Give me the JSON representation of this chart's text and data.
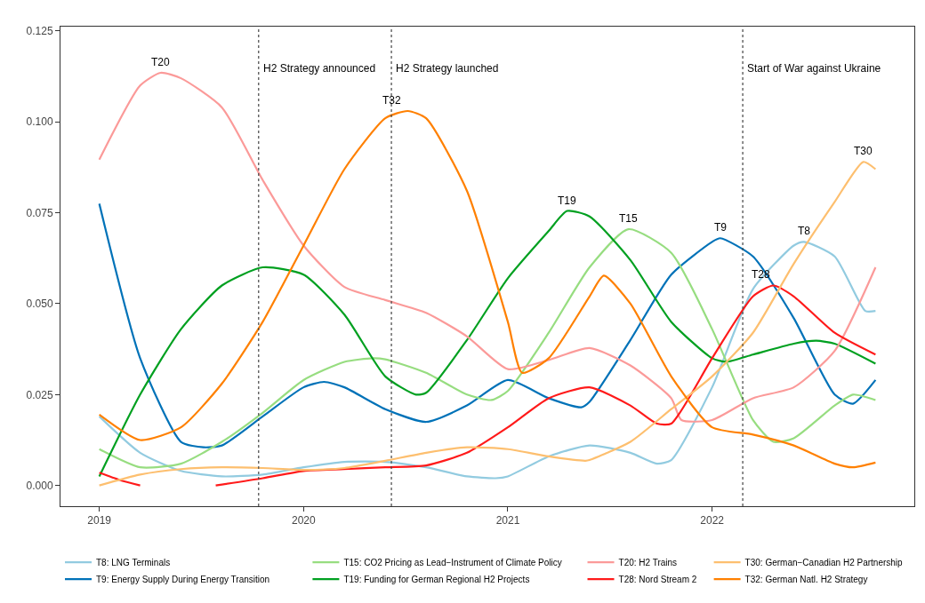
{
  "chart_data": {
    "type": "line",
    "xlim": [
      2018.81,
      2022.99
    ],
    "xticks": [
      2019,
      2020,
      2021,
      2022
    ],
    "ylim": [
      -0.0057,
      0.1262
    ],
    "yticks": [
      {
        "value": 0,
        "label": "0.000"
      },
      {
        "value": 0.025,
        "label": "0.025"
      },
      {
        "value": 0.05,
        "label": "0.050"
      },
      {
        "value": 0.075,
        "label": "0.075"
      },
      {
        "value": 0.1,
        "label": "0.100"
      },
      {
        "value": 0.125,
        "label": "0.125"
      }
    ],
    "legend": "bottom",
    "marker": "none",
    "line_style": "solid",
    "series": [
      {
        "name": "T8: LNG Terminals",
        "color": "#92cbe0",
        "x": [
          2019.0,
          2019.2,
          2019.4,
          2019.6,
          2019.8,
          2020.0,
          2020.2,
          2020.4,
          2020.6,
          2020.8,
          2020.94,
          2021.0,
          2021.2,
          2021.4,
          2021.6,
          2021.73,
          2021.8,
          2022.0,
          2022.2,
          2022.4,
          2022.45,
          2022.6,
          2022.75,
          2022.8
        ],
        "values": [
          0.019,
          0.009,
          0.004,
          0.0025,
          0.003,
          0.005,
          0.0065,
          0.0065,
          0.005,
          0.0025,
          0.002,
          0.0025,
          0.008,
          0.011,
          0.009,
          0.006,
          0.007,
          0.027,
          0.054,
          0.066,
          0.067,
          0.063,
          0.048,
          0.048
        ]
      },
      {
        "name": "T9: Energy Supply During Energy Transition",
        "color": "#0072b8",
        "x": [
          2019.0,
          2019.2,
          2019.4,
          2019.51,
          2019.6,
          2019.8,
          2020.0,
          2020.1,
          2020.2,
          2020.4,
          2020.6,
          2020.8,
          2021.0,
          2021.2,
          2021.36,
          2021.4,
          2021.6,
          2021.8,
          2022.0,
          2022.04,
          2022.2,
          2022.4,
          2022.6,
          2022.69,
          2022.8
        ],
        "values": [
          0.0775,
          0.035,
          0.012,
          0.0105,
          0.011,
          0.019,
          0.027,
          0.0285,
          0.027,
          0.021,
          0.0175,
          0.022,
          0.029,
          0.024,
          0.0215,
          0.023,
          0.04,
          0.058,
          0.067,
          0.068,
          0.063,
          0.046,
          0.025,
          0.0225,
          0.029
        ]
      },
      {
        "name": "T15: CO2 Pricing as Lead−Instrument of Climate Policy",
        "color": "#97dd80",
        "x": [
          2019.0,
          2019.2,
          2019.4,
          2019.6,
          2019.8,
          2020.0,
          2020.2,
          2020.34,
          2020.4,
          2020.6,
          2020.8,
          2020.92,
          2021.0,
          2021.2,
          2021.4,
          2021.59,
          2021.8,
          2022.0,
          2022.2,
          2022.3,
          2022.4,
          2022.6,
          2022.69,
          2022.8
        ],
        "values": [
          0.01,
          0.005,
          0.006,
          0.012,
          0.02,
          0.029,
          0.034,
          0.035,
          0.0347,
          0.031,
          0.025,
          0.0235,
          0.026,
          0.042,
          0.06,
          0.0705,
          0.064,
          0.043,
          0.018,
          0.012,
          0.013,
          0.022,
          0.025,
          0.0235
        ]
      },
      {
        "name": "T19: Funding for German Regional H2 Projects",
        "color": "#00a020",
        "x": [
          2019.0,
          2019.2,
          2019.4,
          2019.6,
          2019.8,
          2020.0,
          2020.2,
          2020.4,
          2020.55,
          2020.6,
          2020.8,
          2021.0,
          2021.2,
          2021.29,
          2021.4,
          2021.6,
          2021.8,
          2022.0,
          2022.07,
          2022.2,
          2022.4,
          2022.51,
          2022.6,
          2022.8
        ],
        "values": [
          0.0025,
          0.025,
          0.043,
          0.055,
          0.06,
          0.058,
          0.047,
          0.03,
          0.025,
          0.0255,
          0.04,
          0.057,
          0.07,
          0.0755,
          0.074,
          0.062,
          0.045,
          0.035,
          0.034,
          0.036,
          0.039,
          0.0398,
          0.039,
          0.0335
        ]
      },
      {
        "name": "T20: H2 Trains",
        "color": "#fb9a99",
        "x": [
          2019.0,
          2019.2,
          2019.3,
          2019.4,
          2019.6,
          2019.8,
          2020.0,
          2020.2,
          2020.4,
          2020.6,
          2020.8,
          2021.0,
          2021.2,
          2021.4,
          2021.6,
          2021.8,
          2021.85,
          2022.0,
          2022.2,
          2022.4,
          2022.6,
          2022.8
        ],
        "values": [
          0.0896,
          0.11,
          0.1135,
          0.112,
          0.104,
          0.084,
          0.066,
          0.0546,
          0.051,
          0.0475,
          0.041,
          0.032,
          0.0345,
          0.0378,
          0.033,
          0.024,
          0.018,
          0.018,
          0.024,
          0.027,
          0.037,
          0.06
        ]
      },
      {
        "name": "T28: Nord Stream 2",
        "color": "#ff1a1a",
        "x": [
          2019.0,
          2019.1,
          2019.2,
          2019.4,
          2019.57,
          2019.8,
          2020.0,
          2020.2,
          2020.4,
          2020.6,
          2020.8,
          2021.0,
          2021.2,
          2021.4,
          2021.6,
          2021.73,
          2021.8,
          2022.0,
          2022.2,
          2022.3,
          2022.4,
          2022.6,
          2022.8
        ],
        "values": [
          0.0035,
          0.0015,
          0.0,
          null,
          0.0,
          0.002,
          0.004,
          0.0045,
          0.005,
          0.0055,
          0.009,
          0.016,
          0.024,
          0.027,
          0.022,
          0.017,
          0.017,
          0.035,
          0.052,
          0.055,
          0.052,
          0.042,
          0.036
        ]
      },
      {
        "name": "T30: German−Canadian H2 Partnership",
        "color": "#fdbf6f",
        "x": [
          2019.0,
          2019.2,
          2019.4,
          2019.6,
          2019.8,
          2020.0,
          2020.2,
          2020.4,
          2020.6,
          2020.8,
          2021.0,
          2021.2,
          2021.38,
          2021.4,
          2021.6,
          2021.8,
          2022.0,
          2022.2,
          2022.4,
          2022.6,
          2022.74,
          2022.8
        ],
        "values": [
          0.0,
          0.003,
          0.0045,
          0.005,
          0.0048,
          0.0043,
          0.0048,
          0.0068,
          0.009,
          0.0105,
          0.01,
          0.008,
          0.0068,
          0.007,
          0.012,
          0.021,
          0.03,
          0.042,
          0.061,
          0.078,
          0.089,
          0.087
        ]
      },
      {
        "name": "T32: German Natl. H2 Strategy",
        "color": "#ff8000",
        "x": [
          2019.0,
          2019.2,
          2019.4,
          2019.6,
          2019.8,
          2020.0,
          2020.2,
          2020.4,
          2020.51,
          2020.6,
          2020.8,
          2021.0,
          2021.07,
          2021.2,
          2021.4,
          2021.47,
          2021.6,
          2021.8,
          2022.0,
          2022.2,
          2022.4,
          2022.6,
          2022.69,
          2022.8
        ],
        "values": [
          0.0195,
          0.0125,
          0.016,
          0.028,
          0.045,
          0.066,
          0.087,
          0.101,
          0.103,
          0.101,
          0.081,
          0.045,
          0.031,
          0.035,
          0.052,
          0.0577,
          0.05,
          0.03,
          0.016,
          0.014,
          0.011,
          0.006,
          0.005,
          0.0063
        ]
      }
    ],
    "ref_lines": [
      {
        "axis": "x",
        "value": 2019.78,
        "label": "H2 Strategy announced",
        "color": "#444444",
        "line_style": "dotted"
      },
      {
        "axis": "x",
        "value": 2020.43,
        "label": "H2 Strategy launched",
        "color": "#444444",
        "line_style": "dotted"
      },
      {
        "axis": "x",
        "value": 2022.15,
        "label": "Start of War against Ukraine",
        "color": "#444444",
        "line_style": "dotted"
      }
    ],
    "annotations": [
      {
        "text": "T20",
        "x": 2019.3,
        "y": 0.1135
      },
      {
        "text": "T32",
        "x": 2020.43,
        "y": 0.103
      },
      {
        "text": "T19",
        "x": 2021.29,
        "y": 0.0755
      },
      {
        "text": "T15",
        "x": 2021.59,
        "y": 0.0705
      },
      {
        "text": "T9",
        "x": 2022.04,
        "y": 0.068
      },
      {
        "text": "T28",
        "x": 2022.24,
        "y": 0.055
      },
      {
        "text": "T8",
        "x": 2022.45,
        "y": 0.067
      },
      {
        "text": "T30",
        "x": 2022.74,
        "y": 0.089
      }
    ]
  }
}
